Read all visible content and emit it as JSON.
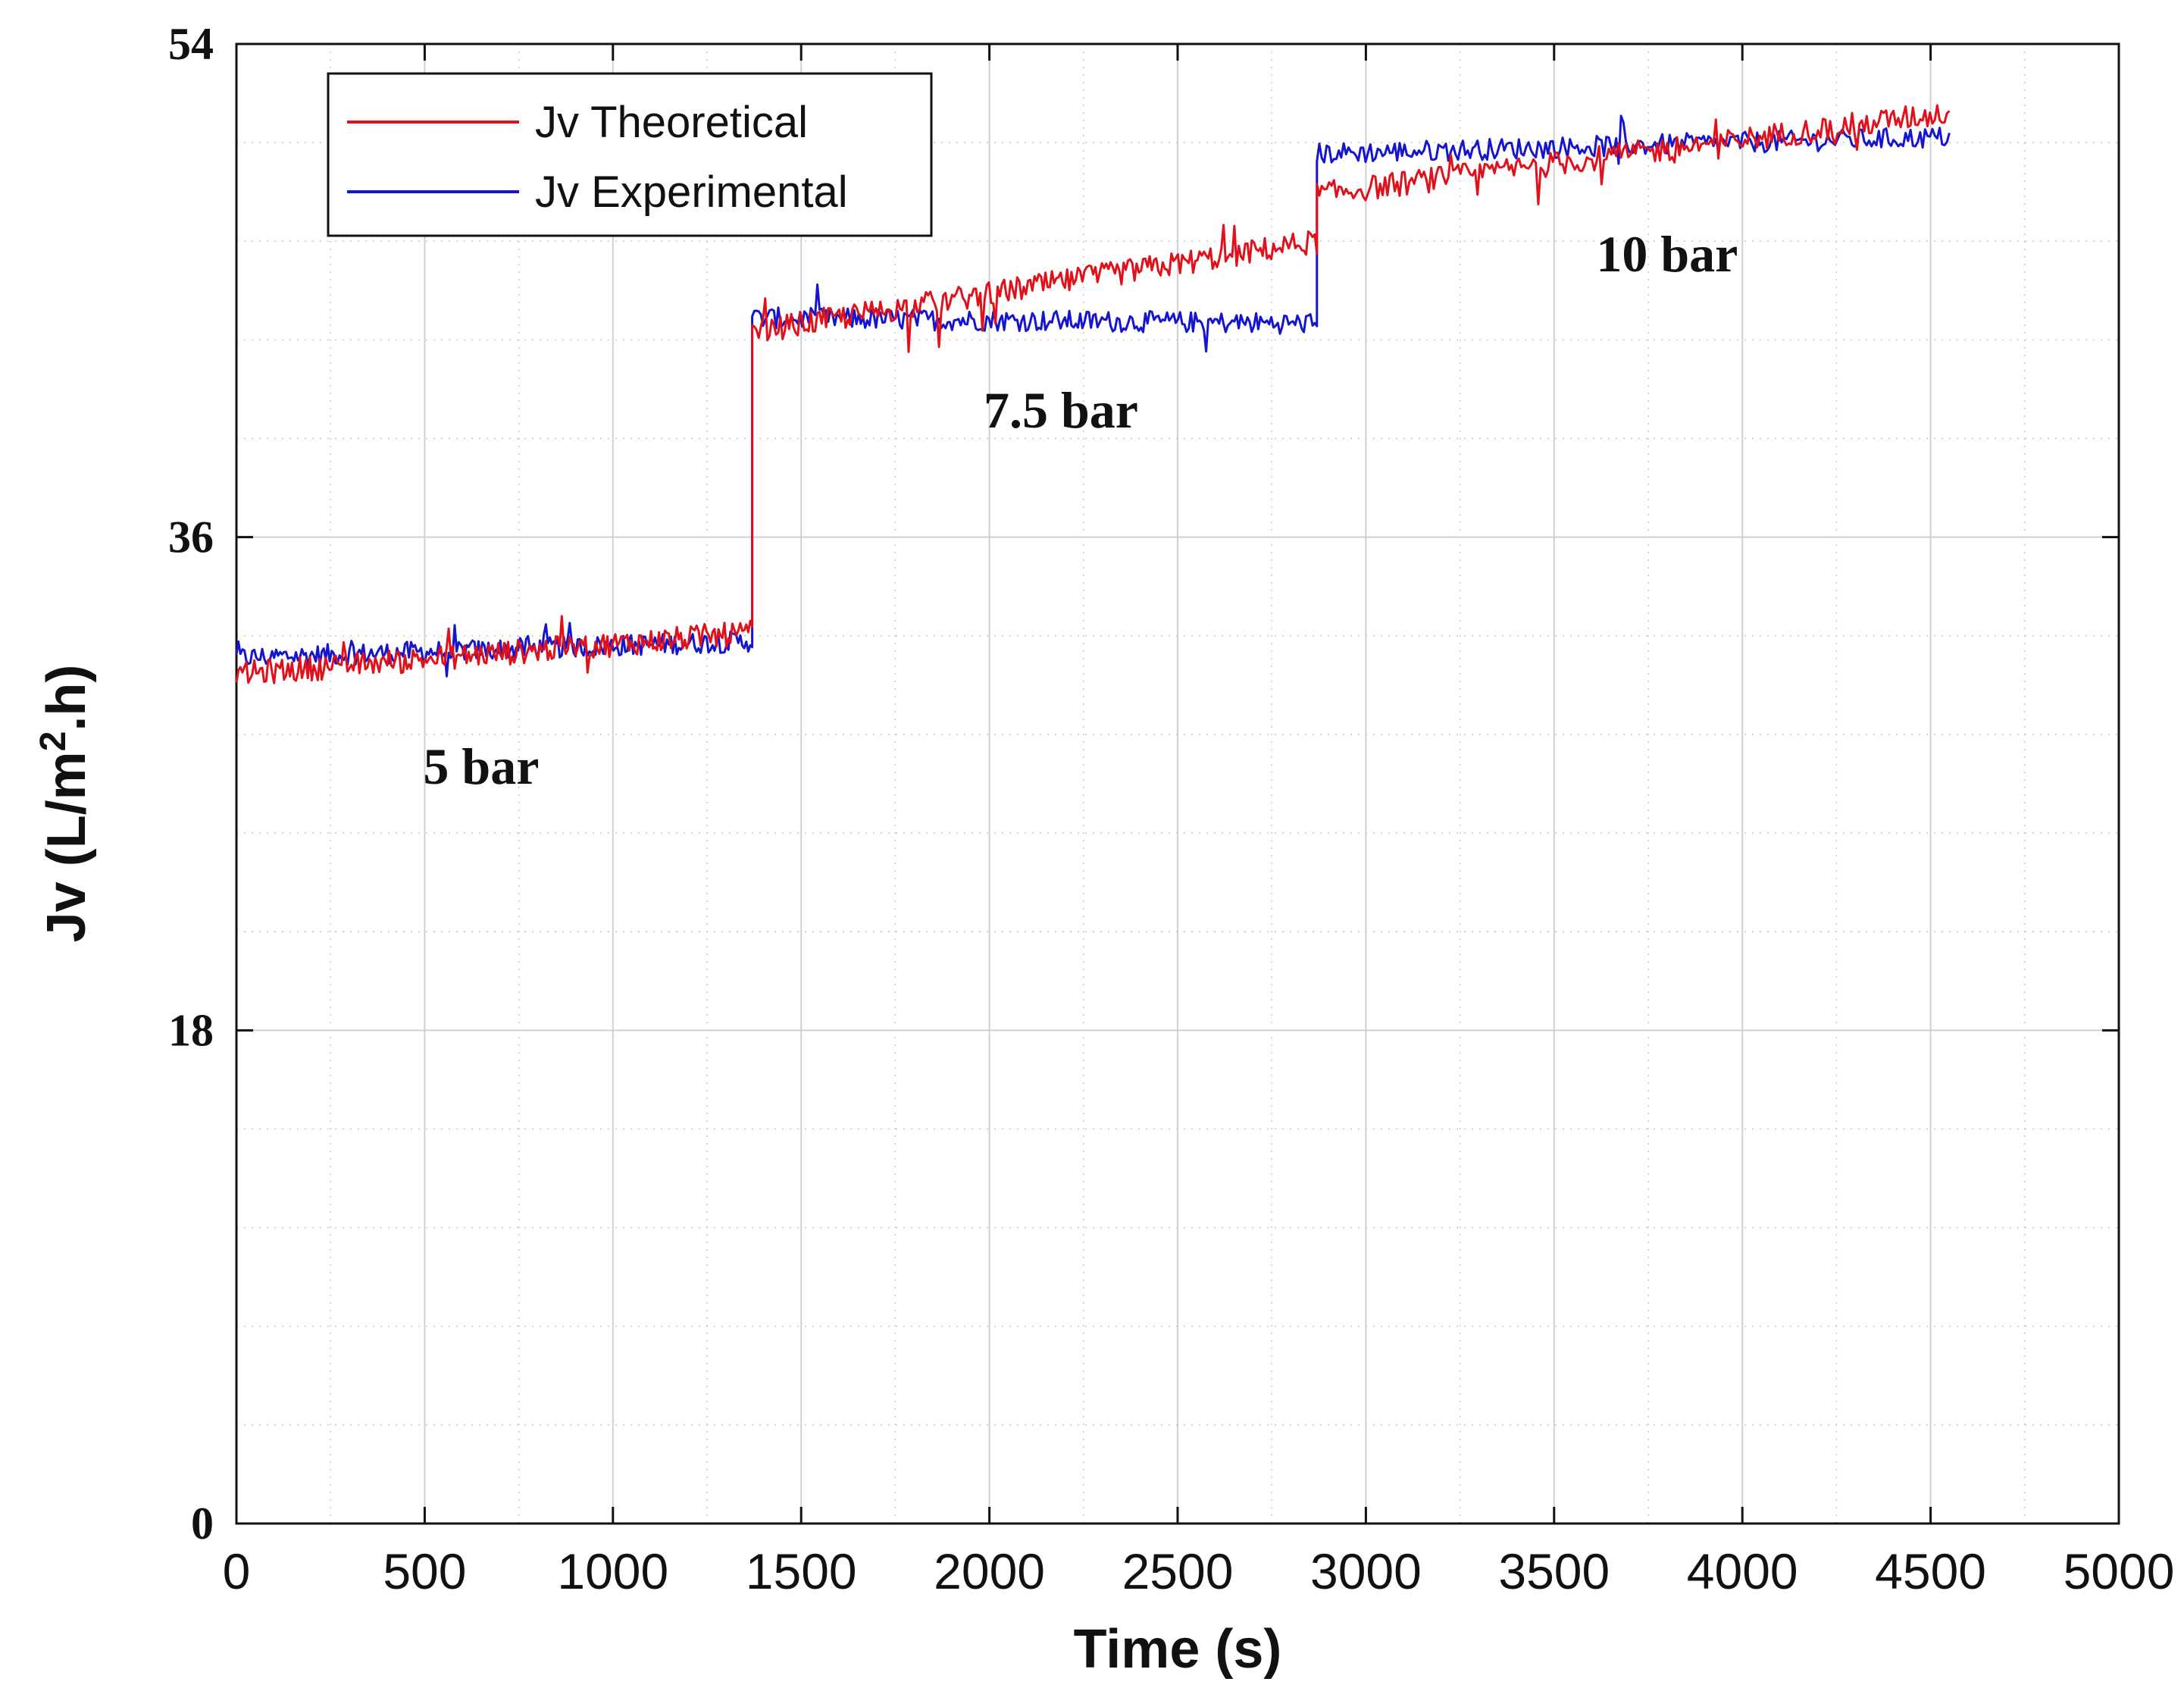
{
  "chart_data": {
    "type": "line",
    "title": "",
    "xlabel": "Time (s)",
    "ylabel_main": "Jv (L/m",
    "ylabel_sup": "2",
    "ylabel_tail": ".h)",
    "xlim": [
      0,
      5000
    ],
    "ylim": [
      0,
      54
    ],
    "xticks": [
      0,
      500,
      1000,
      1500,
      2000,
      2500,
      3000,
      3500,
      4000,
      4500,
      5000
    ],
    "xtick_labels": [
      "0",
      "500",
      "1000",
      "1500",
      "2000",
      "2500",
      "3000",
      "3500",
      "4000",
      "4500",
      "5000"
    ],
    "yticks": [
      0,
      18,
      36,
      54
    ],
    "ytick_labels": [
      "0",
      "18",
      "36",
      "54"
    ],
    "grid": true,
    "legend_position": "top-left",
    "series": [
      {
        "name": "Jv Theoretical",
        "color": "#e0111b",
        "segments": [
          {
            "x_start": 0,
            "x_end": 1370,
            "y_start": 31.0,
            "y_end": 32.5
          },
          {
            "x_start": 1370,
            "x_end": 2870,
            "y_start": 43.5,
            "y_end": 46.8
          },
          {
            "x_start": 2870,
            "x_end": 4550,
            "y_start": 48.5,
            "y_end": 51.5
          }
        ],
        "noise": 0.35
      },
      {
        "name": "Jv Experimental",
        "color": "#1515cf",
        "segments": [
          {
            "x_start": 0,
            "x_end": 1370,
            "y_start": 31.6,
            "y_end": 32.2
          },
          {
            "x_start": 1370,
            "x_end": 2870,
            "y_start": 44.0,
            "y_end": 43.8
          },
          {
            "x_start": 2870,
            "x_end": 4550,
            "y_start": 50.0,
            "y_end": 50.6
          }
        ],
        "noise": 0.3
      }
    ],
    "annotations": [
      {
        "text": "5 bar",
        "x": 650,
        "y": 27.0
      },
      {
        "text": "7.5 bar",
        "x": 2190,
        "y": 40.0
      },
      {
        "text": "10 bar",
        "x": 3800,
        "y": 45.7
      }
    ]
  }
}
